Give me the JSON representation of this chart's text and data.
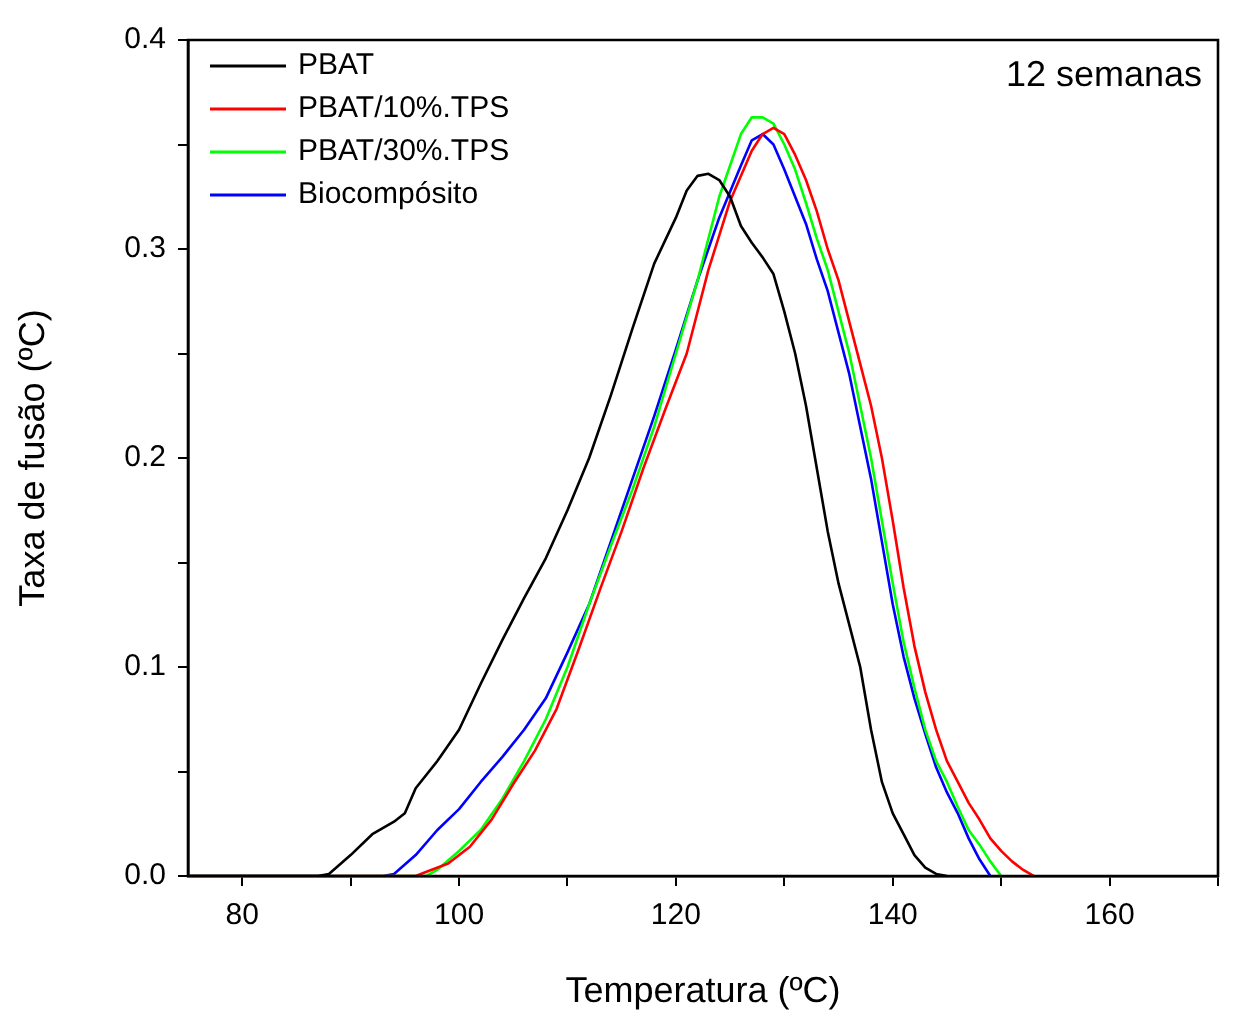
{
  "chart_data": {
    "type": "line",
    "xlabel": "Temperatura (ºC)",
    "ylabel": "Taxa de fusão (ºC)",
    "annotations": [
      "12 semanas"
    ],
    "xlim": [
      75,
      170
    ],
    "xticks": [
      80,
      {
        "value": 90,
        "label": null
      },
      100,
      {
        "value": 110,
        "label": null
      },
      120,
      {
        "value": 130,
        "label": null
      },
      140,
      {
        "value": 150,
        "label": null
      },
      160,
      {
        "value": 170,
        "label": null
      }
    ],
    "ylim": [
      0,
      0.4
    ],
    "yticks": [
      {
        "value": 0,
        "label": "0.0"
      },
      {
        "value": 0.05,
        "label": null
      },
      0.1,
      {
        "value": 0.15,
        "label": null
      },
      0.2,
      {
        "value": 0.25,
        "label": null
      },
      0.3,
      {
        "value": 0.35,
        "label": null
      },
      0.4
    ],
    "grid": false,
    "legend": "top left",
    "marker": "none",
    "line_style": "solid",
    "series": [
      {
        "name": "PBAT",
        "color": "#000000",
        "x": [
          75,
          87,
          88,
          90,
          92,
          94,
          95,
          96,
          98,
          100,
          102,
          104,
          106,
          108,
          110,
          112,
          114,
          116,
          118,
          120,
          121,
          122,
          123,
          124,
          125,
          126,
          127,
          128,
          129,
          130,
          131,
          132,
          133,
          134,
          135,
          136,
          137,
          138,
          139,
          140,
          141,
          142,
          143,
          144,
          145
        ],
        "values": [
          0,
          0,
          0.001,
          0.01,
          0.02,
          0.026,
          0.03,
          0.042,
          0.055,
          0.07,
          0.092,
          0.113,
          0.133,
          0.152,
          0.175,
          0.2,
          0.23,
          0.262,
          0.293,
          0.315,
          0.328,
          0.335,
          0.336,
          0.333,
          0.325,
          0.311,
          0.303,
          0.296,
          0.288,
          0.27,
          0.25,
          0.225,
          0.195,
          0.165,
          0.14,
          0.12,
          0.1,
          0.07,
          0.045,
          0.03,
          0.02,
          0.01,
          0.004,
          0.001,
          0
        ]
      },
      {
        "name": "PBAT/10%.TPS",
        "color": "#ff0000",
        "x": [
          75,
          96,
          97,
          99,
          101,
          103,
          105,
          107,
          109,
          111,
          113,
          115,
          117,
          119,
          121,
          123,
          125,
          127,
          128,
          129,
          130,
          131,
          132,
          133,
          134,
          135,
          136,
          137,
          138,
          139,
          140,
          141,
          142,
          143,
          144,
          145,
          146,
          147,
          148,
          149,
          150,
          151,
          152,
          153
        ],
        "values": [
          0,
          0,
          0.002,
          0.006,
          0.014,
          0.027,
          0.044,
          0.06,
          0.08,
          0.108,
          0.137,
          0.165,
          0.195,
          0.223,
          0.25,
          0.29,
          0.323,
          0.347,
          0.355,
          0.358,
          0.355,
          0.345,
          0.333,
          0.318,
          0.3,
          0.285,
          0.265,
          0.245,
          0.225,
          0.2,
          0.17,
          0.138,
          0.11,
          0.088,
          0.07,
          0.055,
          0.045,
          0.035,
          0.027,
          0.018,
          0.012,
          0.007,
          0.003,
          0
        ]
      },
      {
        "name": "PBAT/30%.TPS",
        "color": "#00ff00",
        "x": [
          75,
          97,
          98,
          100,
          102,
          104,
          106,
          108,
          110,
          112,
          114,
          116,
          118,
          120,
          122,
          124,
          126,
          127,
          128,
          129,
          130,
          131,
          132,
          133,
          134,
          135,
          136,
          137,
          138,
          139,
          140,
          141,
          142,
          143,
          144,
          145,
          146,
          147,
          148,
          149,
          150
        ],
        "values": [
          0,
          0,
          0.003,
          0.012,
          0.022,
          0.037,
          0.055,
          0.075,
          0.1,
          0.13,
          0.158,
          0.185,
          0.215,
          0.25,
          0.285,
          0.325,
          0.355,
          0.363,
          0.363,
          0.36,
          0.35,
          0.338,
          0.322,
          0.305,
          0.29,
          0.27,
          0.25,
          0.225,
          0.2,
          0.17,
          0.14,
          0.112,
          0.09,
          0.07,
          0.055,
          0.045,
          0.033,
          0.022,
          0.015,
          0.007,
          0
        ]
      },
      {
        "name": "Biocompósito",
        "color": "#0000ff",
        "x": [
          75,
          93,
          94,
          96,
          98,
          100,
          102,
          104,
          106,
          108,
          110,
          112,
          114,
          116,
          118,
          120,
          122,
          124,
          126,
          127,
          128,
          129,
          130,
          131,
          132,
          133,
          134,
          135,
          136,
          137,
          138,
          139,
          140,
          141,
          142,
          143,
          144,
          145,
          146,
          147,
          148,
          149
        ],
        "values": [
          0,
          0,
          0.001,
          0.01,
          0.022,
          0.032,
          0.045,
          0.057,
          0.07,
          0.085,
          0.107,
          0.13,
          0.16,
          0.19,
          0.22,
          0.252,
          0.285,
          0.315,
          0.34,
          0.352,
          0.355,
          0.35,
          0.338,
          0.325,
          0.312,
          0.295,
          0.28,
          0.26,
          0.24,
          0.215,
          0.19,
          0.16,
          0.13,
          0.105,
          0.085,
          0.068,
          0.052,
          0.04,
          0.03,
          0.018,
          0.008,
          0
        ]
      }
    ]
  }
}
